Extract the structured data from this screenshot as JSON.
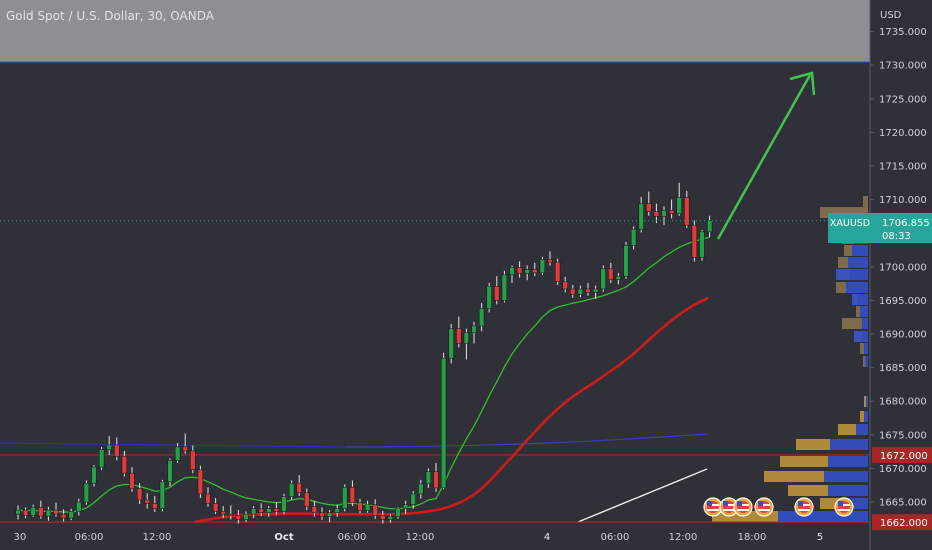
{
  "title": "Gold Spot / U.S. Dollar, 30, OANDA",
  "currency_label": "USD",
  "colors": {
    "background": "#2f3038",
    "resistance_zone": "#9ea0a6",
    "up_candle": "#26a046",
    "down_candle": "#e23b3b",
    "ema_fast": "#2fbf2f",
    "ema_slow": "#d21a1a",
    "arrow": "#3fc54d",
    "price_tag": "#26a69a",
    "level_tag": "#a82626"
  },
  "chart_data": {
    "type": "candlestick",
    "symbol": "XAUUSD",
    "ylim": [
      1661,
      1737
    ],
    "y_ticks": [
      "1735.000",
      "1730.000",
      "1725.000",
      "1720.000",
      "1715.000",
      "1710.000",
      "1705.000",
      "1700.000",
      "1695.000",
      "1690.000",
      "1685.000",
      "1680.000",
      "1675.000",
      "1670.000",
      "1665.000"
    ],
    "x_ticks": [
      "30",
      "06:00",
      "12:00",
      "Oct",
      "06:00",
      "12:00",
      "4",
      "06:00",
      "12:00",
      "18:00",
      "5"
    ],
    "last_price": {
      "label": "XAUUSD",
      "value": "1706.855",
      "countdown": "08:33"
    },
    "levels": [
      {
        "value": "1672.000",
        "color": "#a82626"
      },
      {
        "value": "1662.000",
        "color": "#a82626"
      }
    ],
    "resistance_zone": [
      1730.5,
      1737
    ],
    "candles_ohlc": [
      [
        1663.2,
        1664.5,
        1662.4,
        1663.8
      ],
      [
        1663.8,
        1664.2,
        1662.6,
        1663.0
      ],
      [
        1663.0,
        1664.6,
        1662.8,
        1664.2
      ],
      [
        1664.2,
        1665.2,
        1662.5,
        1662.9
      ],
      [
        1662.9,
        1664.3,
        1662.2,
        1663.8
      ],
      [
        1663.8,
        1664.9,
        1662.8,
        1663.2
      ],
      [
        1663.2,
        1663.9,
        1662.1,
        1662.6
      ],
      [
        1662.6,
        1664.0,
        1662.3,
        1663.6
      ],
      [
        1663.6,
        1665.5,
        1663.0,
        1665.0
      ],
      [
        1665.0,
        1668.2,
        1664.6,
        1667.8
      ],
      [
        1667.8,
        1670.5,
        1667.3,
        1670.2
      ],
      [
        1670.2,
        1673.2,
        1669.8,
        1672.8
      ],
      [
        1672.8,
        1674.8,
        1672.0,
        1673.5
      ],
      [
        1673.5,
        1674.6,
        1671.2,
        1671.8
      ],
      [
        1671.8,
        1672.6,
        1668.8,
        1669.3
      ],
      [
        1669.3,
        1670.2,
        1666.5,
        1667.0
      ],
      [
        1667.0,
        1667.8,
        1664.7,
        1665.3
      ],
      [
        1665.3,
        1666.3,
        1664.0,
        1664.8
      ],
      [
        1664.8,
        1665.9,
        1663.5,
        1664.0
      ],
      [
        1664.0,
        1668.3,
        1663.6,
        1668.0
      ],
      [
        1668.0,
        1671.5,
        1667.4,
        1671.2
      ],
      [
        1671.2,
        1673.8,
        1670.8,
        1673.2
      ],
      [
        1673.2,
        1675.2,
        1672.2,
        1672.6
      ],
      [
        1672.6,
        1673.4,
        1669.3,
        1669.8
      ],
      [
        1669.8,
        1670.4,
        1665.6,
        1666.2
      ],
      [
        1666.2,
        1667.2,
        1664.3,
        1664.8
      ],
      [
        1664.8,
        1665.6,
        1663.2,
        1663.6
      ],
      [
        1663.6,
        1664.4,
        1662.6,
        1663.2
      ],
      [
        1663.2,
        1664.5,
        1662.4,
        1663.0
      ],
      [
        1663.0,
        1663.8,
        1661.8,
        1662.4
      ],
      [
        1662.4,
        1663.6,
        1662.0,
        1663.2
      ],
      [
        1663.2,
        1664.4,
        1662.6,
        1664.0
      ],
      [
        1664.0,
        1664.8,
        1662.9,
        1663.4
      ],
      [
        1663.4,
        1664.4,
        1662.8,
        1664.0
      ],
      [
        1664.0,
        1665.0,
        1663.0,
        1663.6
      ],
      [
        1663.6,
        1666.2,
        1663.2,
        1665.8
      ],
      [
        1665.8,
        1668.2,
        1665.3,
        1667.8
      ],
      [
        1667.8,
        1669.0,
        1665.9,
        1666.4
      ],
      [
        1666.4,
        1667.0,
        1663.8,
        1664.3
      ],
      [
        1664.3,
        1665.2,
        1662.8,
        1663.4
      ],
      [
        1663.4,
        1664.2,
        1662.3,
        1662.8
      ],
      [
        1662.8,
        1663.8,
        1662.0,
        1663.4
      ],
      [
        1663.4,
        1664.6,
        1662.8,
        1664.0
      ],
      [
        1664.0,
        1667.6,
        1663.6,
        1667.2
      ],
      [
        1667.2,
        1668.2,
        1664.4,
        1664.9
      ],
      [
        1664.9,
        1665.5,
        1663.3,
        1663.7
      ],
      [
        1663.7,
        1665.2,
        1663.4,
        1664.6
      ],
      [
        1664.6,
        1665.4,
        1662.5,
        1663.0
      ],
      [
        1663.0,
        1663.7,
        1661.8,
        1662.4
      ],
      [
        1662.4,
        1663.2,
        1661.9,
        1662.8
      ],
      [
        1662.8,
        1664.2,
        1662.5,
        1664.0
      ],
      [
        1664.0,
        1665.2,
        1663.2,
        1664.6
      ],
      [
        1664.6,
        1666.6,
        1664.0,
        1666.2
      ],
      [
        1666.2,
        1668.3,
        1665.5,
        1667.7
      ],
      [
        1667.7,
        1670.0,
        1667.1,
        1669.5
      ],
      [
        1669.5,
        1670.8,
        1666.5,
        1667.1
      ],
      [
        1667.1,
        1687.2,
        1666.9,
        1686.4
      ],
      [
        1686.4,
        1691.5,
        1685.6,
        1690.8
      ],
      [
        1690.8,
        1692.6,
        1688.0,
        1688.6
      ],
      [
        1688.6,
        1690.8,
        1686.2,
        1690.2
      ],
      [
        1690.2,
        1691.8,
        1688.6,
        1691.2
      ],
      [
        1691.2,
        1694.6,
        1690.4,
        1693.8
      ],
      [
        1693.8,
        1697.6,
        1693.2,
        1697.1
      ],
      [
        1697.1,
        1698.6,
        1694.4,
        1695.0
      ],
      [
        1695.0,
        1699.4,
        1694.7,
        1698.8
      ],
      [
        1698.8,
        1700.2,
        1697.6,
        1699.9
      ],
      [
        1699.9,
        1700.8,
        1698.4,
        1699.0
      ],
      [
        1699.0,
        1700.2,
        1698.0,
        1699.6
      ],
      [
        1699.6,
        1700.6,
        1698.6,
        1699.1
      ],
      [
        1699.1,
        1701.5,
        1698.8,
        1701.1
      ],
      [
        1701.1,
        1702.3,
        1700.2,
        1700.7
      ],
      [
        1700.7,
        1701.2,
        1697.3,
        1697.8
      ],
      [
        1697.8,
        1698.5,
        1696.2,
        1696.7
      ],
      [
        1696.7,
        1697.3,
        1695.4,
        1695.9
      ],
      [
        1695.9,
        1697.2,
        1695.5,
        1696.7
      ],
      [
        1696.7,
        1697.6,
        1695.7,
        1696.2
      ],
      [
        1696.2,
        1697.2,
        1695.2,
        1696.7
      ],
      [
        1696.7,
        1700.2,
        1696.3,
        1699.7
      ],
      [
        1699.7,
        1700.6,
        1697.6,
        1698.1
      ],
      [
        1698.1,
        1699.1,
        1697.4,
        1698.6
      ],
      [
        1698.6,
        1703.7,
        1698.2,
        1703.2
      ],
      [
        1703.2,
        1706.0,
        1702.6,
        1705.6
      ],
      [
        1705.6,
        1710.4,
        1705.1,
        1709.4
      ],
      [
        1709.4,
        1711.2,
        1707.6,
        1708.2
      ],
      [
        1708.2,
        1709.4,
        1706.5,
        1707.5
      ],
      [
        1707.5,
        1709.0,
        1706.2,
        1708.4
      ],
      [
        1708.4,
        1710.0,
        1707.2,
        1707.9
      ],
      [
        1707.9,
        1712.5,
        1707.6,
        1710.3
      ],
      [
        1710.3,
        1711.3,
        1705.8,
        1706.2
      ],
      [
        1706.2,
        1706.9,
        1700.8,
        1701.4
      ],
      [
        1701.4,
        1705.5,
        1700.9,
        1705.2
      ],
      [
        1705.2,
        1707.6,
        1704.4,
        1706.9
      ]
    ],
    "ema_fast": [
      1663.8,
      1663.7,
      1663.8,
      1663.6,
      1663.6,
      1663.6,
      1663.5,
      1663.5,
      1663.7,
      1664.1,
      1664.9,
      1665.9,
      1666.8,
      1667.4,
      1667.6,
      1667.6,
      1667.3,
      1667.0,
      1666.6,
      1666.7,
      1667.2,
      1668.0,
      1668.6,
      1668.7,
      1668.5,
      1668.0,
      1667.5,
      1666.9,
      1666.5,
      1666.0,
      1665.6,
      1665.4,
      1665.2,
      1665.0,
      1664.9,
      1665.0,
      1665.3,
      1665.5,
      1665.4,
      1665.1,
      1664.8,
      1664.6,
      1664.5,
      1664.8,
      1664.8,
      1664.7,
      1664.6,
      1664.4,
      1664.2,
      1664.0,
      1664.0,
      1664.1,
      1664.3,
      1664.7,
      1665.3,
      1665.5,
      1667.6,
      1670.1,
      1672.3,
      1674.4,
      1676.3,
      1678.5,
      1680.8,
      1682.9,
      1685.1,
      1687.0,
      1688.6,
      1690.0,
      1691.2,
      1692.5,
      1693.5,
      1694.0,
      1694.3,
      1694.6,
      1694.8,
      1695.1,
      1695.4,
      1695.7,
      1696.1,
      1696.5,
      1697.0,
      1697.8,
      1698.8,
      1699.8,
      1700.6,
      1701.5,
      1702.2,
      1702.9,
      1703.4,
      1703.8,
      1704.1,
      1704.4
    ]
  }
}
